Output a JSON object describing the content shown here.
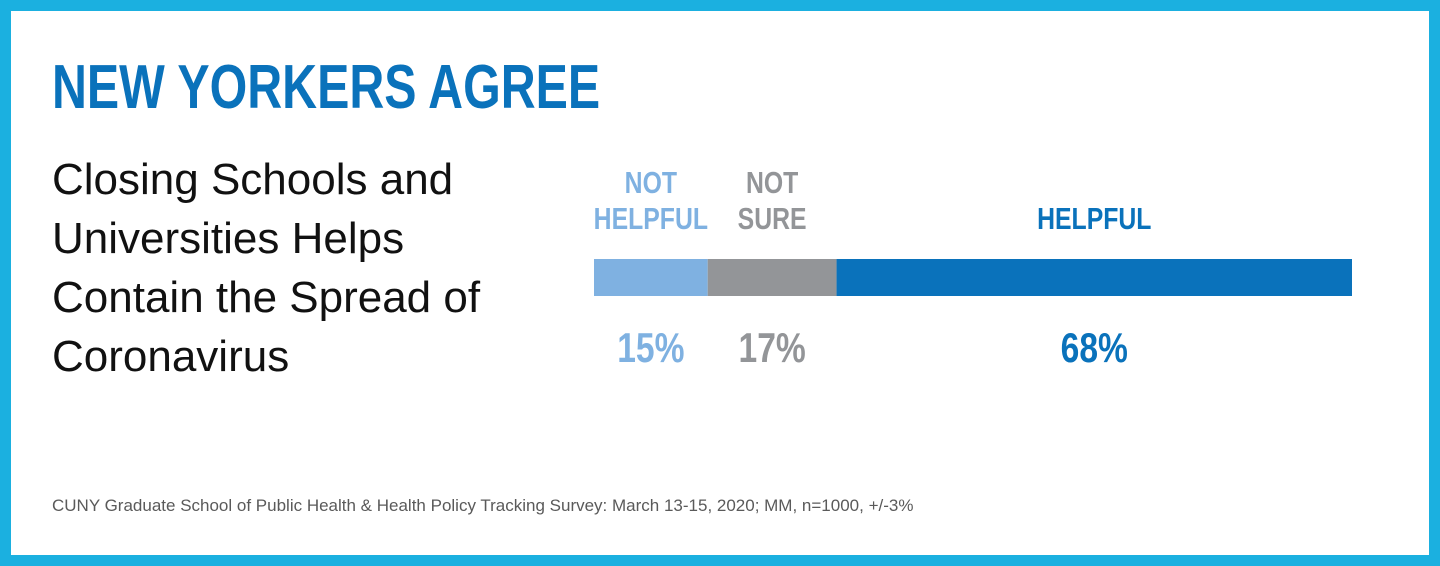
{
  "headline": "NEW YORKERS AGREE",
  "subtitle": "Closing Schools and Universities Helps Contain the Spread of Coronavirus",
  "source": "CUNY Graduate School of Public Health & Health Policy Tracking Survey: March 13-15, 2020; MM, n=1000, +/-3%",
  "colors": {
    "frame": "#1bb0e0",
    "headline": "#0a72bb"
  },
  "chart_data": {
    "type": "bar",
    "orientation": "horizontal-stacked-100",
    "categories": [
      "NOT HELPFUL",
      "NOT SURE",
      "HELPFUL"
    ],
    "category_lines": [
      [
        "NOT",
        "HELPFUL"
      ],
      [
        "NOT",
        "SURE"
      ],
      [
        "HELPFUL"
      ]
    ],
    "values": [
      15,
      17,
      68
    ],
    "value_labels": [
      "15%",
      "17%",
      "68%"
    ],
    "colors": [
      "#7fb1e1",
      "#939598",
      "#0a72bb"
    ],
    "unit": "%"
  }
}
